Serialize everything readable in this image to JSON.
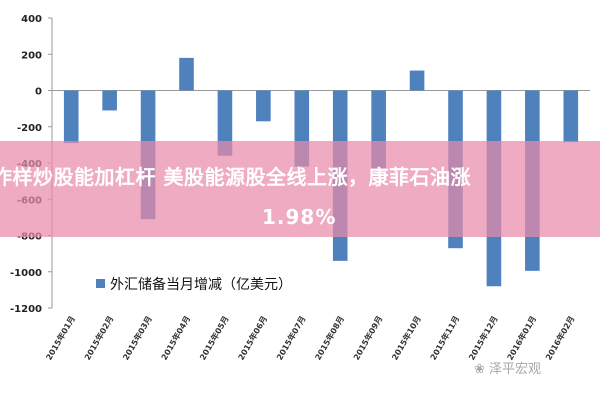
{
  "chart_data": {
    "type": "bar",
    "categories": [
      "2015年01月",
      "2015年02月",
      "2015年03月",
      "2015年04月",
      "2015年05月",
      "2015年06月",
      "2015年07月",
      "2015年08月",
      "2015年09月",
      "2015年10月",
      "2015年11月",
      "2015年12月",
      "2016年01月",
      "2016年02月"
    ],
    "series": [
      {
        "name": "外汇储备当月增减（亿美元）",
        "values": [
          -290,
          -110,
          -710,
          180,
          -360,
          -170,
          -420,
          -940,
          -430,
          110,
          -870,
          -1080,
          -995,
          -285
        ]
      }
    ],
    "ylim": [
      -1200,
      400
    ],
    "yticks": [
      400,
      200,
      0,
      -200,
      -400,
      -600,
      -800,
      -1000,
      -1200
    ],
    "legend_position": "bottom-left",
    "grid": false
  },
  "overlay": {
    "line1": "咋样炒股能加杠杆 美股能源股全线上涨，康菲石油涨",
    "line2": "1.98%"
  },
  "watermark": "泽平宏观",
  "colors": {
    "bar": "#4f81bd",
    "overlay": "#e78baa"
  }
}
